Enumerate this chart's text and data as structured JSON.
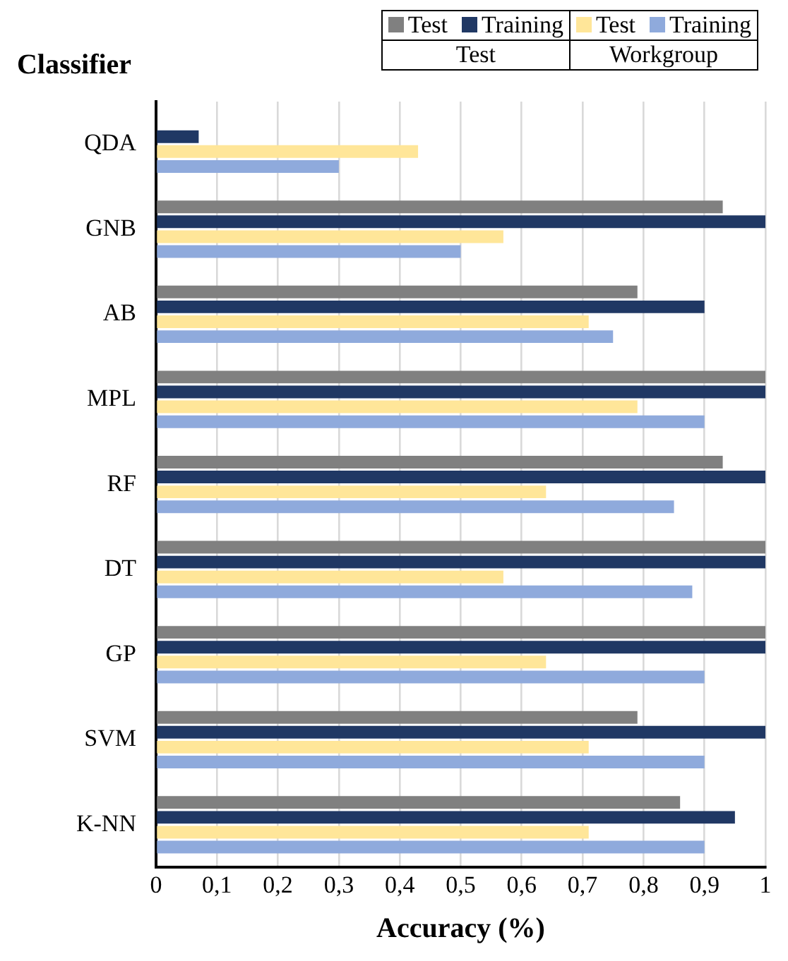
{
  "chart_data": {
    "type": "bar",
    "orientation": "horizontal",
    "xlabel": "Accuracy (%)",
    "ylabel": "Classifier",
    "categories": [
      "QDA",
      "GNB",
      "AB",
      "MPL",
      "RF",
      "DT",
      "GP",
      "SVM",
      "K-NN"
    ],
    "series": [
      {
        "name": "Test",
        "color": "#808080",
        "values": [
          0,
          0.93,
          0.79,
          1,
          0.93,
          1,
          1,
          0.79,
          0.86
        ]
      },
      {
        "name": "Training",
        "color": "#203864",
        "values": [
          0.07,
          1,
          0.9,
          1,
          1,
          1,
          1,
          1,
          0.95
        ]
      },
      {
        "name": "Test",
        "color": "#ffe699",
        "values": [
          0.43,
          0.57,
          0.71,
          0.79,
          0.64,
          0.57,
          0.64,
          0.71,
          0.71
        ]
      },
      {
        "name": "Training",
        "color": "#8faadc",
        "values": [
          0.3,
          0.5,
          0.75,
          0.9,
          0.85,
          0.88,
          0.9,
          0.9,
          0.9
        ]
      }
    ],
    "annotations": [
      "Test",
      "Workgroup"
    ],
    "xlim": [
      0,
      1
    ],
    "xticks": [
      0,
      {
        "value": 0.1,
        "label": "0,1"
      },
      {
        "value": 0.2,
        "label": "0,2"
      },
      {
        "value": 0.3,
        "label": "0,3"
      },
      {
        "value": 0.4,
        "label": "0,4"
      },
      {
        "value": 0.5,
        "label": "0,5"
      },
      {
        "value": 0.6,
        "label": "0,6"
      },
      {
        "value": 0.7,
        "label": "0,7"
      },
      {
        "value": 0.8,
        "label": "0,8"
      },
      {
        "value": 0.9,
        "label": "0,9"
      },
      1
    ],
    "grid": "x",
    "legend": "top right"
  }
}
